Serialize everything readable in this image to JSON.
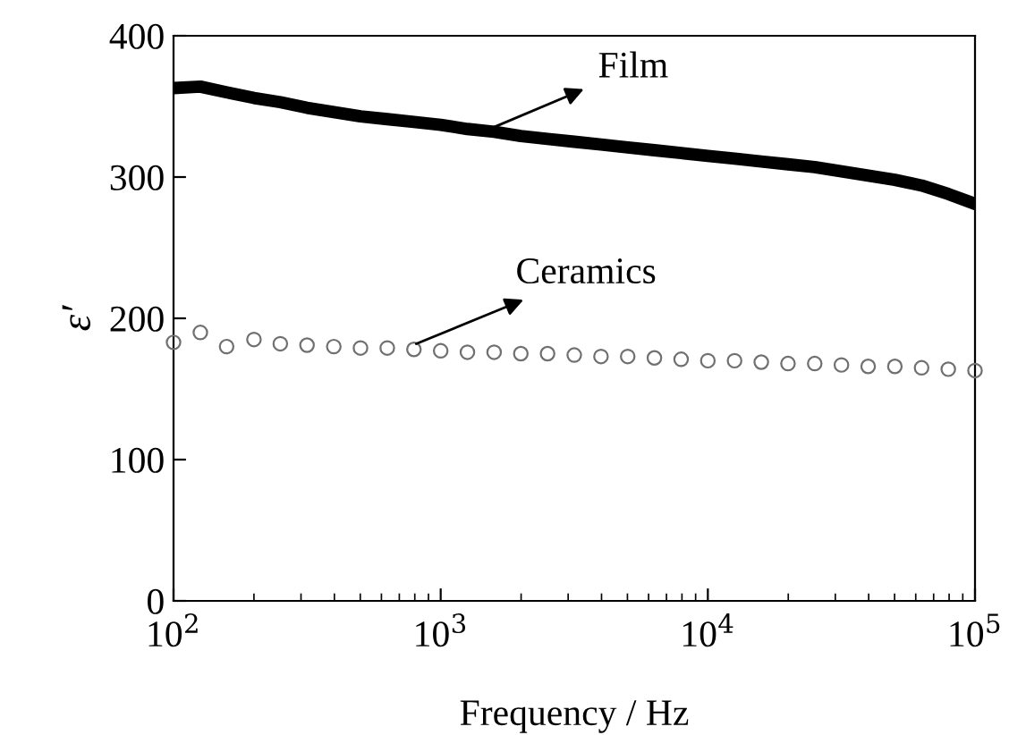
{
  "chart_data": {
    "type": "scatter",
    "xlabel": "Frequency / Hz",
    "ylabel": "ε′",
    "x": [
      100,
      126,
      158,
      200,
      251,
      316,
      398,
      501,
      631,
      794,
      1000,
      1259,
      1585,
      1995,
      2512,
      3162,
      3981,
      5012,
      6310,
      7943,
      10000,
      12589,
      15849,
      19953,
      25119,
      31623,
      39811,
      50119,
      63096,
      79433,
      100000
    ],
    "series": [
      {
        "type": "line",
        "color": "#000000",
        "line_style": "solid",
        "marker": "none",
        "values": [
          363,
          364,
          360,
          356,
          353,
          349,
          346,
          343,
          341,
          339,
          337,
          334,
          332,
          329,
          327,
          325,
          323,
          321,
          319,
          317,
          315,
          313,
          311,
          309,
          307,
          304,
          301,
          298,
          294,
          288,
          281
        ]
      },
      {
        "color": "#707070",
        "marker": "circle",
        "values": [
          183,
          190,
          180,
          185,
          182,
          181,
          180,
          179,
          179,
          178,
          177,
          176,
          176,
          175,
          175,
          174,
          173,
          173,
          172,
          171,
          170,
          170,
          169,
          168,
          168,
          167,
          166,
          166,
          165,
          164,
          163
        ]
      }
    ],
    "annotations": [
      {
        "text": "Film",
        "x": 1480,
        "y": 333
      },
      {
        "text": "Ceramics",
        "x": 810,
        "y": 182
      }
    ],
    "log": "x",
    "xlim": [
      100,
      100000
    ],
    "ylim": [
      0,
      400
    ],
    "xticks": [
      {
        "value": 100,
        "label": "10$^{2}$"
      },
      {
        "value": 1000,
        "label": "10$^{3}$"
      },
      {
        "value": 10000,
        "label": "10$^{4}$"
      },
      {
        "value": 100000,
        "label": "10$^{5}$"
      }
    ],
    "yticks": [
      0,
      100,
      200,
      300,
      400
    ],
    "grid": false,
    "legend": false
  }
}
